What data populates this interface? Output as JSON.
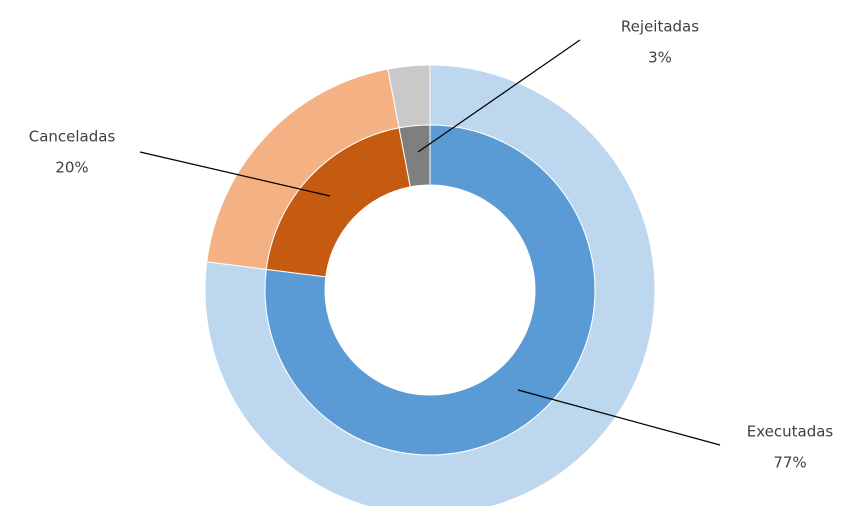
{
  "chart_data": {
    "type": "donut",
    "categories": [
      "Executadas",
      "Canceladas",
      "Rejeitadas"
    ],
    "values": [
      77,
      20,
      3
    ],
    "value_labels": [
      "77%",
      "20%",
      "3%"
    ],
    "colors": [
      "#5b9bd5",
      "#c55a11",
      "#7f7f7f"
    ],
    "outer_colors": [
      "#bdd7ee",
      "#f4b183",
      "#c9c9c9"
    ]
  }
}
